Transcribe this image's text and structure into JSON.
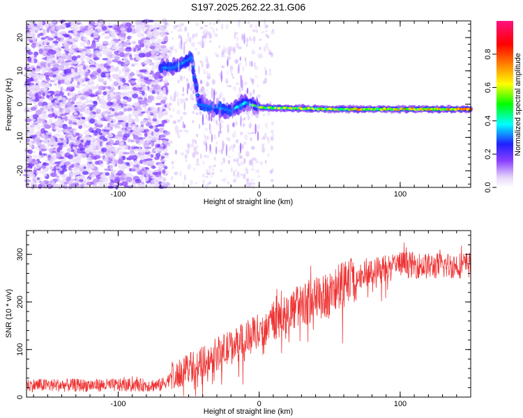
{
  "title": "S197.2025.262.22.31.G06",
  "chart_data": [
    {
      "type": "heatmap",
      "xlabel": "Height of straight line (km)",
      "ylabel": "Frequency (Hz)",
      "xlim": [
        -165,
        150
      ],
      "ylim": [
        -25,
        25
      ],
      "x_ticks": [
        -100,
        0,
        100
      ],
      "x_tick_labels": [
        "-100",
        "0",
        "100"
      ],
      "y_ticks": [
        -20,
        -10,
        0,
        10,
        20
      ],
      "y_tick_labels": [
        "-20",
        "-10",
        "0",
        "10",
        "20"
      ],
      "colorbar": {
        "label": "Normalized spectral amplitude",
        "range": [
          0,
          1
        ],
        "ticks": [
          0.0,
          0.2,
          0.4,
          0.6,
          0.8
        ],
        "tick_labels": [
          "0.0",
          "0.2",
          "0.4",
          "0.6",
          "0.8"
        ]
      },
      "ridge": {
        "description_points": [
          {
            "x": -70,
            "y": 11,
            "amp": 0.35
          },
          {
            "x": -60,
            "y": 11,
            "amp": 0.3
          },
          {
            "x": -48,
            "y": 14,
            "amp": 0.35
          },
          {
            "x": -43,
            "y": 0,
            "amp": 0.3
          },
          {
            "x": -30,
            "y": -1,
            "amp": 0.35
          },
          {
            "x": -20,
            "y": -2,
            "amp": 0.35
          },
          {
            "x": -10,
            "y": 0.5,
            "amp": 0.45
          },
          {
            "x": 0,
            "y": -1,
            "amp": 0.6
          },
          {
            "x": 50,
            "y": -1.5,
            "amp": 0.7
          },
          {
            "x": 100,
            "y": -1.5,
            "amp": 0.75
          },
          {
            "x": 150,
            "y": -1.5,
            "amp": 0.8
          }
        ]
      }
    },
    {
      "type": "line",
      "xlabel": "Height of straight line (km)",
      "ylabel": "SNR (10 * v/v)",
      "xlim": [
        -165,
        150
      ],
      "ylim": [
        0,
        350
      ],
      "x_ticks": [
        -100,
        0,
        100
      ],
      "x_tick_labels": [
        "-100",
        "0",
        "100"
      ],
      "y_ticks": [
        0,
        100,
        200,
        300
      ],
      "y_tick_labels": [
        "0",
        "100",
        "200",
        "300"
      ],
      "series": [
        {
          "name": "SNR",
          "color": "#ee3333",
          "trend": [
            [
              -165,
              25
            ],
            [
              -120,
              25
            ],
            [
              -70,
              25
            ],
            [
              -62,
              40
            ],
            [
              -50,
              60
            ],
            [
              -30,
              90
            ],
            [
              -10,
              120
            ],
            [
              10,
              160
            ],
            [
              30,
              195
            ],
            [
              50,
              215
            ],
            [
              68,
              250
            ],
            [
              80,
              265
            ],
            [
              100,
              280
            ],
            [
              120,
              275
            ],
            [
              150,
              278
            ]
          ]
        }
      ]
    }
  ]
}
